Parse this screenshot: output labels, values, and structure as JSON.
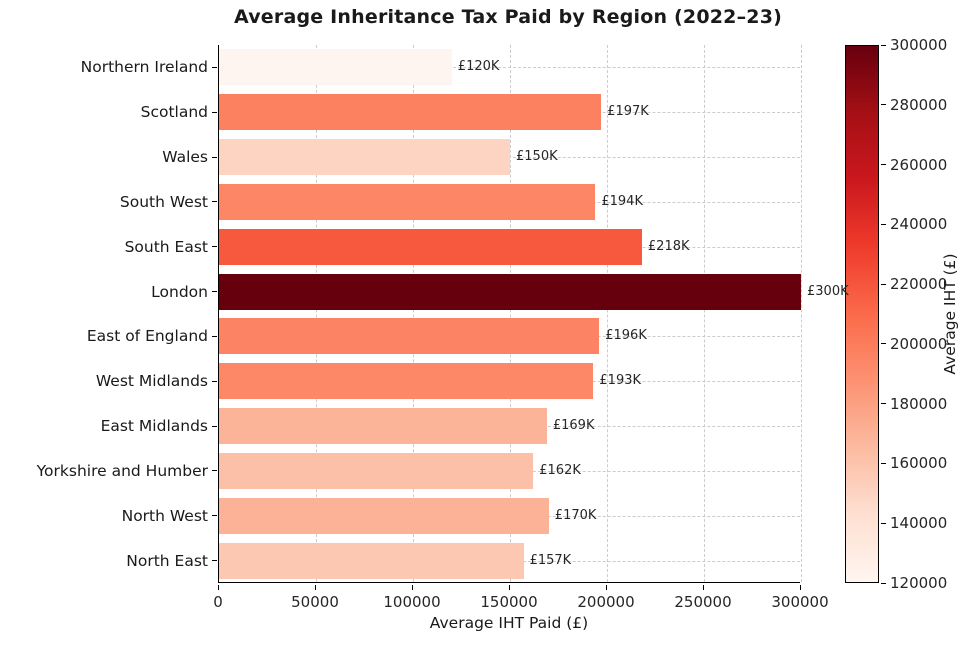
{
  "chart_data": {
    "type": "bar",
    "orientation": "horizontal",
    "title": "Average Inheritance Tax Paid by Region (2022–23)",
    "xlabel": "Average IHT Paid (£)",
    "colorbar_label": "Average IHT (£)",
    "xlim": [
      0,
      300000
    ],
    "grid": true,
    "categories": [
      "Northern Ireland",
      "Scotland",
      "Wales",
      "South West",
      "South East",
      "London",
      "East of England",
      "West Midlands",
      "East Midlands",
      "Yorkshire and Humber",
      "North West",
      "North East"
    ],
    "values": [
      120000,
      197000,
      150000,
      194000,
      218000,
      300000,
      196000,
      193000,
      169000,
      162000,
      170000,
      157000
    ],
    "bar_labels": [
      "£120K",
      "£197K",
      "£150K",
      "£194K",
      "£218K",
      "£300K",
      "£196K",
      "£193K",
      "£169K",
      "£162K",
      "£170K",
      "£157K"
    ],
    "bar_colors": [
      "#fff5f0",
      "#fc8161",
      "#fdd4c2",
      "#fc8666",
      "#f7593f",
      "#67000d",
      "#fc8363",
      "#fc8868",
      "#fcb499",
      "#fcc0a8",
      "#fcb297",
      "#fdc8b2"
    ],
    "x_ticks": [
      0,
      50000,
      100000,
      150000,
      200000,
      250000,
      300000
    ],
    "x_tick_labels": [
      "0",
      "50000",
      "100000",
      "150000",
      "200000",
      "250000",
      "300000"
    ],
    "colorbar": {
      "min": 120000,
      "max": 300000,
      "ticks": [
        300000,
        280000,
        260000,
        240000,
        220000,
        200000,
        180000,
        160000,
        140000,
        120000
      ],
      "tick_labels": [
        "300000",
        "280000",
        "260000",
        "240000",
        "220000",
        "200000",
        "180000",
        "160000",
        "140000",
        "120000"
      ],
      "gradient_stops": [
        "#fff5f0",
        "#fee0d2",
        "#fcbba1",
        "#fc9272",
        "#fb6a4a",
        "#ef3b2c",
        "#cb181d",
        "#a50f15",
        "#67000d"
      ]
    }
  }
}
